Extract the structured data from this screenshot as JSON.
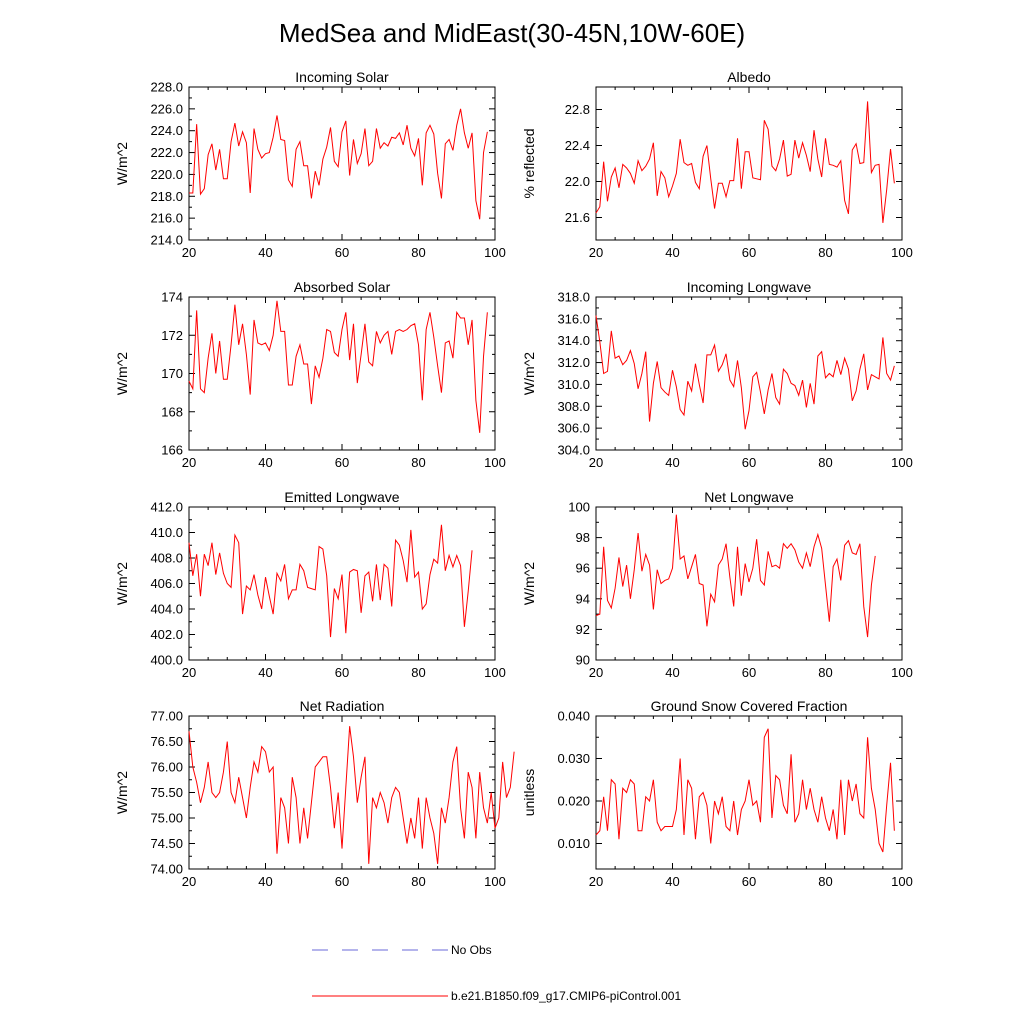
{
  "title": "MedSea and MidEast(30-45N,10W-60E)",
  "legend": {
    "obs_label": "No Obs",
    "obs_color": "#6a6ad8",
    "model_label": "b.e21.B1850.f09_g17.CMIP6-piControl.001",
    "model_color": "#ff0000"
  },
  "chart_data": [
    {
      "type": "line",
      "title": "Incoming Solar",
      "xlabel": "",
      "ylabel": "W/m^2",
      "xlim": [
        20,
        100
      ],
      "ylim": [
        214,
        228
      ],
      "xticks": [
        20,
        40,
        60,
        80,
        100
      ],
      "yticks": [
        214,
        216,
        218,
        220,
        222,
        224,
        226,
        228
      ],
      "ytick_labels": [
        "214.0",
        "216.0",
        "218.0",
        "220.0",
        "222.0",
        "224.0",
        "226.0",
        "228.0"
      ],
      "x_start": 20,
      "series": [
        {
          "name": "b.e21.B1850.f09_g17.CMIP6-piControl.001",
          "values": [
            218.3,
            218.3,
            224.6,
            218.2,
            218.7,
            221.8,
            222.8,
            220.4,
            222.3,
            219.6,
            219.6,
            223.0,
            224.7,
            222.6,
            223.9,
            222.9,
            218.3,
            224.2,
            222.3,
            221.5,
            221.9,
            222.0,
            223.4,
            225.4,
            223.2,
            223.1,
            219.5,
            218.9,
            222.3,
            223.0,
            220.8,
            220.8,
            217.8,
            220.3,
            219.0,
            221.4,
            222.5,
            224.3,
            221.2,
            220.7,
            223.9,
            224.9,
            219.9,
            223.2,
            221.0,
            221.9,
            224.2,
            220.8,
            221.2,
            224.2,
            222.4,
            222.9,
            222.6,
            223.4,
            223.3,
            223.8,
            222.7,
            224.5,
            222.4,
            221.7,
            223.3,
            219.0,
            223.8,
            224.5,
            223.7,
            220.1,
            217.8,
            222.8,
            223.2,
            222.2,
            224.5,
            226.0,
            223.8,
            222.4,
            223.8,
            217.6,
            215.9,
            222.0,
            223.9
          ]
        }
      ]
    },
    {
      "type": "line",
      "title": "Albedo",
      "xlabel": "",
      "ylabel": "% reflected",
      "xlim": [
        20,
        100
      ],
      "ylim": [
        21.35,
        23.05
      ],
      "xticks": [
        20,
        40,
        60,
        80,
        100
      ],
      "yticks": [
        21.6,
        22.0,
        22.4,
        22.8
      ],
      "ytick_labels": [
        "21.6",
        "22.0",
        "22.4",
        "22.8"
      ],
      "x_start": 20,
      "series": [
        {
          "name": "b.e21.B1850.f09_g17.CMIP6-piControl.001",
          "values": [
            21.65,
            21.72,
            22.22,
            21.78,
            22.05,
            22.15,
            21.93,
            22.19,
            22.15,
            22.09,
            21.98,
            22.23,
            22.12,
            22.17,
            22.25,
            22.43,
            21.84,
            22.11,
            22.04,
            21.83,
            21.95,
            22.09,
            22.47,
            22.21,
            22.18,
            22.2,
            21.99,
            21.92,
            22.28,
            22.4,
            22.03,
            21.7,
            21.98,
            21.98,
            21.83,
            22.01,
            22.01,
            22.48,
            21.92,
            22.33,
            22.33,
            22.04,
            22.03,
            22.02,
            22.68,
            22.58,
            22.17,
            22.12,
            22.25,
            22.46,
            22.06,
            22.08,
            22.46,
            22.26,
            22.43,
            22.29,
            22.11,
            22.57,
            22.25,
            22.05,
            22.48,
            22.19,
            22.18,
            22.16,
            22.23,
            21.79,
            21.64,
            22.35,
            22.42,
            22.2,
            22.21,
            22.89,
            22.1,
            22.18,
            22.19,
            21.54,
            21.91,
            22.36,
            21.98
          ]
        }
      ]
    },
    {
      "type": "line",
      "title": "Absorbed Solar",
      "xlabel": "",
      "ylabel": "W/m^2",
      "xlim": [
        20,
        100
      ],
      "ylim": [
        166,
        174
      ],
      "xticks": [
        20,
        40,
        60,
        80,
        100
      ],
      "yticks": [
        166,
        168,
        170,
        172,
        174
      ],
      "ytick_labels": [
        "166",
        "168",
        "170",
        "172",
        "174"
      ],
      "x_start": 20,
      "series": [
        {
          "name": "b.e21.B1850.f09_g17.CMIP6-piControl.001",
          "values": [
            169.6,
            169.2,
            173.3,
            169.2,
            169.0,
            170.8,
            172.1,
            170.0,
            171.7,
            169.7,
            169.7,
            171.5,
            173.6,
            171.5,
            172.6,
            171.0,
            168.9,
            172.8,
            171.6,
            171.5,
            171.6,
            171.2,
            172.0,
            173.8,
            172.2,
            172.2,
            169.4,
            169.4,
            170.9,
            171.5,
            170.5,
            170.5,
            168.4,
            170.4,
            169.8,
            170.8,
            172.3,
            172.2,
            171.1,
            170.9,
            172.3,
            173.2,
            170.7,
            172.6,
            169.5,
            171.0,
            172.6,
            170.6,
            170.4,
            172.2,
            171.6,
            172.0,
            172.2,
            171.0,
            172.2,
            172.3,
            172.2,
            172.3,
            172.5,
            172.6,
            171.5,
            168.6,
            172.3,
            173.2,
            171.9,
            170.4,
            169.0,
            171.6,
            171.7,
            170.8,
            173.2,
            172.9,
            172.9,
            171.5,
            172.8,
            168.6,
            166.9,
            170.9,
            173.2
          ]
        }
      ]
    },
    {
      "type": "line",
      "title": "Incoming Longwave",
      "xlabel": "",
      "ylabel": "W/m^2",
      "xlim": [
        20,
        100
      ],
      "ylim": [
        304,
        318
      ],
      "xticks": [
        20,
        40,
        60,
        80,
        100
      ],
      "yticks": [
        304,
        306,
        308,
        310,
        312,
        314,
        316,
        318
      ],
      "ytick_labels": [
        "304.0",
        "306.0",
        "308.0",
        "310.0",
        "312.0",
        "314.0",
        "316.0",
        "318.0"
      ],
      "x_start": 20,
      "series": [
        {
          "name": "b.e21.B1850.f09_g17.CMIP6-piControl.001",
          "values": [
            316.3,
            313.9,
            311.0,
            311.2,
            314.9,
            312.4,
            312.6,
            311.8,
            312.2,
            313.1,
            311.9,
            309.6,
            311.0,
            313.0,
            306.6,
            310.1,
            312.1,
            309.7,
            309.3,
            309.0,
            311.3,
            309.8,
            307.7,
            307.2,
            310.3,
            309.4,
            311.9,
            310.0,
            308.3,
            312.7,
            312.7,
            313.6,
            311.2,
            311.8,
            312.8,
            310.4,
            309.8,
            312.2,
            309.7,
            305.9,
            307.6,
            310.7,
            311.1,
            309.3,
            307.3,
            309.5,
            311.0,
            308.8,
            308.2,
            311.4,
            311.0,
            310.1,
            309.9,
            309.0,
            310.4,
            307.9,
            310.1,
            308.2,
            312.6,
            313.0,
            310.6,
            311.0,
            310.7,
            312.2,
            310.9,
            312.4,
            311.4,
            308.5,
            309.4,
            311.4,
            312.8,
            309.5,
            310.9,
            310.7,
            310.5,
            314.3,
            311.0,
            310.4,
            311.7
          ]
        }
      ]
    },
    {
      "type": "line",
      "title": "Emitted Longwave",
      "xlabel": "",
      "ylabel": "W/m^2",
      "xlim": [
        20,
        100
      ],
      "ylim": [
        400,
        412
      ],
      "xticks": [
        20,
        40,
        60,
        80,
        100
      ],
      "yticks": [
        400,
        402,
        404,
        406,
        408,
        410,
        412
      ],
      "ytick_labels": [
        "400.0",
        "402.0",
        "404.0",
        "406.0",
        "408.0",
        "410.0",
        "412.0"
      ],
      "x_start": 20,
      "series": [
        {
          "name": "b.e21.B1850.f09_g17.CMIP6-piControl.001",
          "values": [
            409.2,
            406.6,
            408.3,
            405.0,
            408.3,
            407.4,
            409.2,
            406.7,
            408.4,
            406.8,
            406.0,
            405.7,
            409.8,
            409.2,
            403.6,
            405.8,
            405.5,
            406.7,
            405.1,
            404.0,
            406.5,
            405.0,
            403.6,
            406.8,
            406.2,
            407.5,
            404.8,
            405.5,
            405.5,
            407.5,
            407.0,
            405.7,
            405.6,
            405.5,
            408.9,
            408.7,
            406.6,
            401.8,
            405.6,
            404.8,
            406.7,
            402.1,
            406.9,
            407.1,
            407.0,
            403.7,
            406.6,
            406.9,
            404.6,
            407.5,
            404.7,
            407.5,
            407.2,
            404.2,
            409.4,
            409.0,
            407.8,
            406.1,
            410.2,
            406.5,
            406.9,
            404.0,
            404.4,
            406.7,
            407.9,
            407.6,
            410.6,
            407.0,
            408.2,
            407.3,
            408.2,
            407.4,
            402.6,
            405.4,
            408.6
          ]
        }
      ]
    },
    {
      "type": "line",
      "title": "Net Longwave",
      "xlabel": "",
      "ylabel": "W/m^2",
      "xlim": [
        20,
        100
      ],
      "ylim": [
        90,
        100
      ],
      "xticks": [
        20,
        40,
        60,
        80,
        100
      ],
      "yticks": [
        90,
        92,
        94,
        96,
        98,
        100
      ],
      "ytick_labels": [
        "90",
        "92",
        "94",
        "96",
        "98",
        "100"
      ],
      "x_start": 20,
      "series": [
        {
          "name": "b.e21.B1850.f09_g17.CMIP6-piControl.001",
          "values": [
            92.9,
            93.0,
            97.4,
            93.9,
            93.4,
            94.7,
            96.7,
            94.8,
            96.2,
            94.0,
            95.9,
            98.3,
            95.8,
            96.9,
            96.2,
            93.3,
            95.9,
            95.0,
            95.2,
            95.3,
            96.0,
            99.5,
            96.6,
            96.8,
            95.3,
            96.1,
            96.9,
            95.0,
            94.9,
            92.2,
            94.3,
            93.8,
            96.2,
            96.6,
            97.6,
            95.4,
            93.5,
            97.4,
            94.2,
            96.3,
            95.1,
            96.0,
            97.9,
            95.2,
            94.9,
            97.1,
            96.1,
            96.2,
            96.0,
            97.6,
            97.3,
            97.6,
            97.2,
            96.4,
            96.0,
            97.0,
            96.1,
            97.4,
            98.2,
            97.3,
            94.9,
            92.5,
            96.1,
            96.6,
            95.2,
            97.5,
            97.8,
            97.0,
            96.9,
            97.6,
            93.5,
            91.5,
            94.9,
            96.8
          ]
        }
      ]
    },
    {
      "type": "line",
      "title": "Net Radiation",
      "xlabel": "",
      "ylabel": "W/m^2",
      "xlim": [
        20,
        100
      ],
      "ylim": [
        74,
        77
      ],
      "xticks": [
        20,
        40,
        60,
        80,
        100
      ],
      "yticks": [
        74,
        74.5,
        75,
        75.5,
        76,
        76.5,
        77
      ],
      "ytick_labels": [
        "74.00",
        "74.50",
        "75.00",
        "75.50",
        "76.00",
        "76.50",
        "77.00"
      ],
      "x_start": 20,
      "series": [
        {
          "name": "b.e21.B1850.f09_g17.CMIP6-piControl.001",
          "values": [
            76.7,
            76.0,
            75.7,
            75.3,
            75.6,
            76.1,
            75.5,
            75.4,
            75.5,
            75.9,
            76.5,
            75.5,
            75.3,
            75.8,
            75.4,
            75.0,
            75.6,
            76.1,
            75.9,
            76.4,
            76.3,
            75.9,
            76.0,
            74.3,
            75.4,
            75.2,
            74.5,
            75.8,
            75.4,
            74.5,
            75.2,
            74.6,
            75.3,
            76.0,
            76.1,
            76.2,
            76.2,
            75.6,
            74.8,
            75.5,
            74.4,
            75.6,
            76.8,
            76.2,
            75.3,
            75.8,
            76.2,
            74.1,
            75.4,
            75.2,
            75.5,
            75.3,
            74.9,
            75.4,
            75.6,
            75.5,
            75.0,
            74.5,
            75.0,
            74.6,
            75.4,
            74.4,
            75.4,
            75.0,
            74.7,
            74.1,
            75.2,
            74.9,
            75.4,
            76.1,
            76.4,
            75.2,
            74.6,
            75.9,
            75.6,
            74.6,
            75.9,
            75.2,
            74.9,
            75.5,
            74.8,
            75.0,
            76.1,
            75.4,
            75.6,
            76.3
          ]
        }
      ]
    },
    {
      "type": "line",
      "title": "Ground Snow Covered Fraction",
      "xlabel": "",
      "ylabel": "unitless",
      "xlim": [
        20,
        100
      ],
      "ylim": [
        0.004,
        0.04
      ],
      "xticks": [
        20,
        40,
        60,
        80,
        100
      ],
      "yticks": [
        0.01,
        0.02,
        0.03,
        0.04
      ],
      "ytick_labels": [
        "0.010",
        "0.020",
        "0.030",
        "0.040"
      ],
      "x_start": 20,
      "series": [
        {
          "name": "b.e21.B1850.f09_g17.CMIP6-piControl.001",
          "values": [
            0.012,
            0.013,
            0.021,
            0.013,
            0.025,
            0.024,
            0.011,
            0.023,
            0.022,
            0.025,
            0.024,
            0.013,
            0.013,
            0.021,
            0.02,
            0.025,
            0.015,
            0.013,
            0.014,
            0.014,
            0.014,
            0.018,
            0.03,
            0.012,
            0.025,
            0.023,
            0.011,
            0.021,
            0.022,
            0.019,
            0.01,
            0.02,
            0.017,
            0.021,
            0.014,
            0.013,
            0.02,
            0.012,
            0.018,
            0.02,
            0.025,
            0.019,
            0.02,
            0.015,
            0.035,
            0.037,
            0.016,
            0.026,
            0.025,
            0.019,
            0.017,
            0.031,
            0.015,
            0.017,
            0.025,
            0.018,
            0.023,
            0.018,
            0.015,
            0.021,
            0.016,
            0.013,
            0.018,
            0.011,
            0.025,
            0.012,
            0.025,
            0.02,
            0.024,
            0.017,
            0.016,
            0.035,
            0.023,
            0.018,
            0.01,
            0.008,
            0.019,
            0.029,
            0.013
          ]
        }
      ]
    }
  ]
}
